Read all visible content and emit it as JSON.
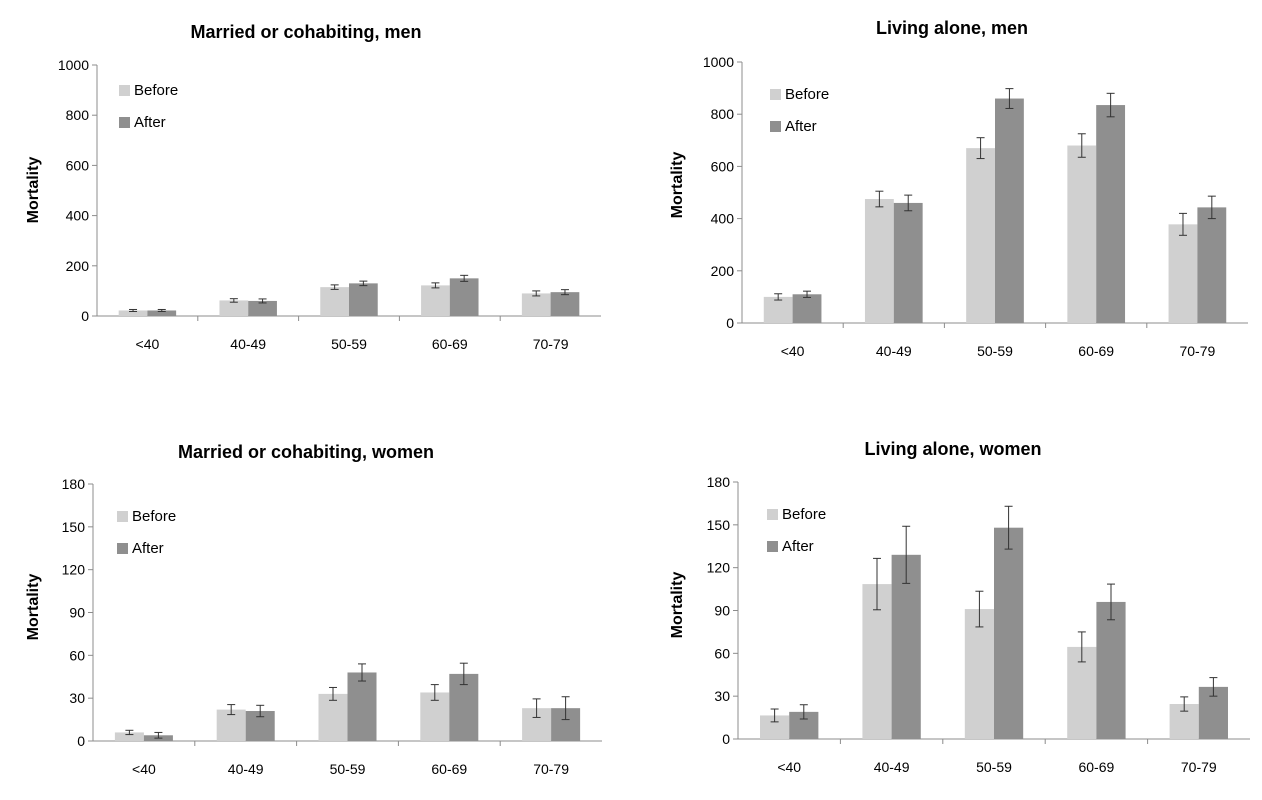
{
  "colors": {
    "before": "#d0d0d0",
    "after": "#8f8f8f",
    "axis": "#8c8c8c",
    "error_bar": "#333333"
  },
  "chart_data": [
    {
      "type": "bar",
      "title": "Married or cohabiting, men",
      "ylabel": "Mortality",
      "xlabel": "",
      "ylim": [
        0,
        1000
      ],
      "yticks": [
        0,
        200,
        400,
        600,
        800,
        1000
      ],
      "categories": [
        "<40",
        "40-49",
        "50-59",
        "60-69",
        "70-79"
      ],
      "legend_position": "top-left",
      "series": [
        {
          "name": "Before",
          "values": [
            22,
            62,
            115,
            122,
            90
          ],
          "error": [
            4,
            7,
            9,
            10,
            10
          ]
        },
        {
          "name": "After",
          "values": [
            22,
            60,
            130,
            150,
            95
          ],
          "error": [
            4,
            8,
            9,
            12,
            10
          ]
        }
      ]
    },
    {
      "type": "bar",
      "title": "Living alone, men",
      "ylabel": "Mortality",
      "xlabel": "",
      "ylim": [
        0,
        1000
      ],
      "yticks": [
        0,
        200,
        400,
        600,
        800,
        1000
      ],
      "categories": [
        "<40",
        "40-49",
        "50-59",
        "60-69",
        "70-79"
      ],
      "legend_position": "top-left",
      "series": [
        {
          "name": "Before",
          "values": [
            100,
            475,
            670,
            680,
            378
          ],
          "error": [
            12,
            30,
            40,
            45,
            42
          ]
        },
        {
          "name": "After",
          "values": [
            110,
            460,
            860,
            835,
            443
          ],
          "error": [
            12,
            30,
            38,
            45,
            43
          ]
        }
      ]
    },
    {
      "type": "bar",
      "title": "Married or cohabiting, women",
      "ylabel": "Mortality",
      "xlabel": "",
      "ylim": [
        0,
        180
      ],
      "yticks": [
        0,
        30,
        60,
        90,
        120,
        150,
        180
      ],
      "categories": [
        "<40",
        "40-49",
        "50-59",
        "60-69",
        "70-79"
      ],
      "legend_position": "top-left",
      "series": [
        {
          "name": "Before",
          "values": [
            6,
            22,
            33,
            34,
            23
          ],
          "error": [
            1.5,
            3.5,
            4.5,
            5.5,
            6.5
          ]
        },
        {
          "name": "After",
          "values": [
            4,
            21,
            48,
            47,
            23
          ],
          "error": [
            2,
            4,
            6,
            7.5,
            8
          ]
        }
      ]
    },
    {
      "type": "bar",
      "title": "Living alone, women",
      "ylabel": "Mortality",
      "xlabel": "",
      "ylim": [
        0,
        180
      ],
      "yticks": [
        0,
        30,
        60,
        90,
        120,
        150,
        180
      ],
      "categories": [
        "<40",
        "40-49",
        "50-59",
        "60-69",
        "70-79"
      ],
      "legend_position": "top-left",
      "series": [
        {
          "name": "Before",
          "values": [
            16.5,
            108.5,
            91,
            64.5,
            24.5
          ],
          "error": [
            4.5,
            18,
            12.5,
            10.5,
            5
          ]
        },
        {
          "name": "After",
          "values": [
            19,
            129,
            148,
            96,
            36.5
          ],
          "error": [
            5,
            20,
            15,
            12.5,
            6.5
          ]
        }
      ]
    }
  ]
}
